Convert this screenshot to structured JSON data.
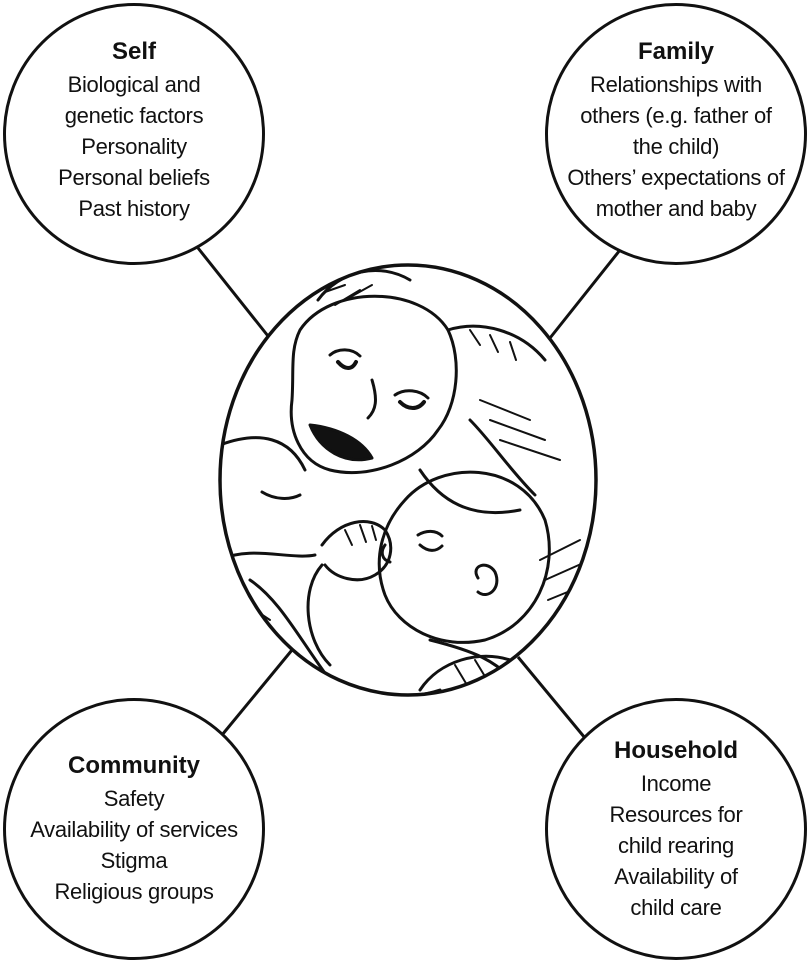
{
  "illustration": {
    "subject": "mother-and-baby-icon",
    "stroke_color": "#111111",
    "fill_color": "#ffffff"
  },
  "nodes": {
    "self": {
      "title": "Self",
      "lines": [
        "Biological and",
        "genetic factors",
        "Personality",
        "Personal beliefs",
        "Past history"
      ]
    },
    "family": {
      "title": "Family",
      "lines": [
        "Relationships with",
        "others (e.g. father of",
        "the child)",
        "Others’ expectations of",
        "mother and baby"
      ]
    },
    "community": {
      "title": "Community",
      "lines": [
        "Safety",
        "Availability of services",
        "Stigma",
        "Religious groups"
      ]
    },
    "household": {
      "title": "Household",
      "lines": [
        "Income",
        "Resources for",
        "child rearing",
        "Availability of",
        "child care"
      ]
    }
  }
}
